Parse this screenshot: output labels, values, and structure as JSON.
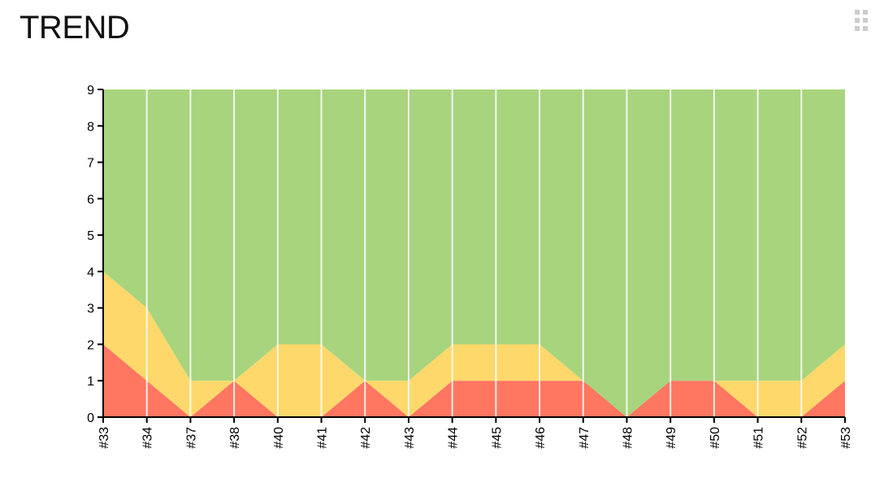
{
  "header": {
    "title": "TREND",
    "grip_icon": "drag-handle-icon"
  },
  "chart_data": {
    "type": "area",
    "stacked": true,
    "title": "TREND",
    "xlabel": "",
    "ylabel": "",
    "ylim": [
      0,
      9
    ],
    "yticks": [
      "0",
      "1",
      "2",
      "3",
      "4",
      "5",
      "6",
      "7",
      "8",
      "9"
    ],
    "categories": [
      "#33",
      "#34",
      "#37",
      "#38",
      "#40",
      "#41",
      "#42",
      "#43",
      "#44",
      "#45",
      "#46",
      "#47",
      "#48",
      "#49",
      "#50",
      "#51",
      "#52",
      "#53"
    ],
    "series": [
      {
        "key": "red",
        "color": "#ff7661",
        "values": [
          2,
          1,
          0,
          1,
          0,
          0,
          1,
          0,
          1,
          1,
          1,
          1,
          0,
          1,
          1,
          0,
          0,
          1
        ]
      },
      {
        "key": "yellow",
        "color": "#fed86b",
        "values": [
          2,
          2,
          1,
          0,
          2,
          2,
          0,
          1,
          1,
          1,
          1,
          0,
          0,
          0,
          0,
          1,
          1,
          1
        ]
      },
      {
        "key": "green",
        "color": "#a8d47e",
        "values": [
          5,
          6,
          8,
          8,
          7,
          7,
          8,
          8,
          7,
          7,
          7,
          8,
          9,
          8,
          8,
          8,
          8,
          7
        ]
      }
    ],
    "grid": "vertical",
    "legend": "none"
  }
}
